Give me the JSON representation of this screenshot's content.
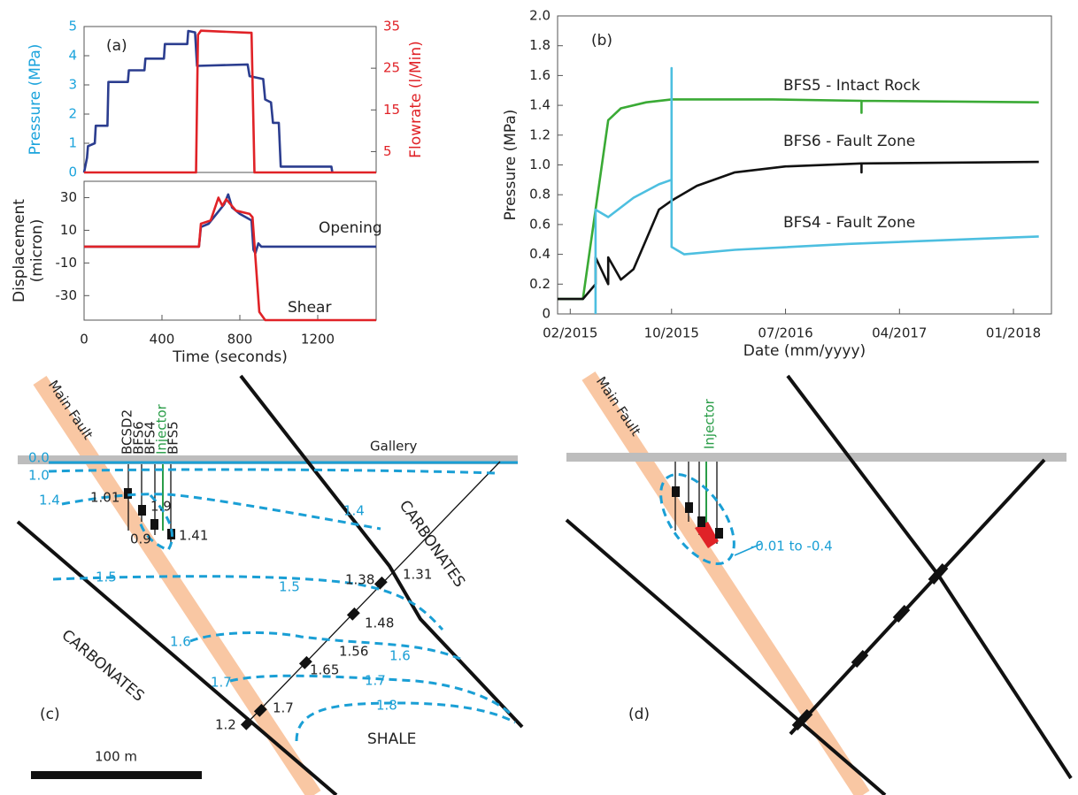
{
  "chart_data": [
    {
      "type": "line",
      "panel_label": "(a)",
      "ylabel": "Pressure (MPa)",
      "y2label": "Flowrate (l/Min)",
      "xlim": [
        0,
        1500
      ],
      "ylim": [
        0,
        5
      ],
      "yticks": [
        0,
        1,
        2,
        3,
        4,
        5
      ],
      "y2lim": [
        0,
        35
      ],
      "y2ticks": [
        5,
        15,
        25,
        35
      ],
      "series": [
        {
          "color": "#2b3d8f",
          "x": [
            0,
            15,
            20,
            55,
            60,
            120,
            125,
            225,
            230,
            310,
            315,
            410,
            415,
            530,
            535,
            570,
            580,
            840,
            850,
            920,
            930,
            960,
            970,
            1000,
            1010,
            1270,
            1275
          ],
          "values": [
            0,
            0.5,
            0.9,
            1.0,
            1.6,
            1.6,
            3.1,
            3.1,
            3.5,
            3.5,
            3.9,
            3.9,
            4.4,
            4.4,
            4.85,
            4.8,
            3.65,
            3.7,
            3.3,
            3.2,
            2.5,
            2.4,
            1.7,
            1.7,
            0.2,
            0.2,
            0
          ]
        },
        {
          "color": "#e02227",
          "axis": "y2",
          "x": [
            0,
            575,
            585,
            600,
            850,
            860,
            875,
            1500
          ],
          "values": [
            0,
            0,
            33,
            34,
            33.5,
            33.5,
            0,
            0
          ]
        }
      ]
    },
    {
      "type": "line",
      "ylabel": [
        "Displacement",
        "(micron)"
      ],
      "xlabel": "Time (seconds)",
      "xlim": [
        0,
        1500
      ],
      "xticks": [
        0,
        400,
        800,
        1200
      ],
      "ylim": [
        -45,
        40
      ],
      "yticks": [
        -30,
        -10,
        10,
        30
      ],
      "series": [
        {
          "name": "Opening",
          "color": "#2b3d8f",
          "x": [
            0,
            590,
            600,
            640,
            680,
            720,
            740,
            760,
            800,
            860,
            870,
            880,
            895,
            910,
            1500
          ],
          "values": [
            0,
            0,
            12,
            14,
            20,
            26,
            32,
            24,
            20,
            16,
            -2,
            -4,
            2,
            0,
            0
          ]
        },
        {
          "name": "Shear",
          "color": "#e02227",
          "x": [
            0,
            590,
            600,
            650,
            690,
            710,
            730,
            780,
            850,
            865,
            900,
            930,
            1500
          ],
          "values": [
            0,
            0,
            14,
            16,
            30,
            25,
            29,
            22,
            20,
            18,
            -40,
            -45,
            -45
          ]
        }
      ]
    },
    {
      "type": "line",
      "panel_label": "(b)",
      "ylabel": "Pressure (MPa)",
      "xlabel": "Date (mm/yyyy)",
      "xlim": [
        "2015-01",
        "2018-04"
      ],
      "xticks": [
        {
          "value": "2015-02",
          "label": "02/2015"
        },
        {
          "value": "2015-10",
          "label": "10/2015"
        },
        {
          "value": "2016-07",
          "label": "07/2016"
        },
        {
          "value": "2017-04",
          "label": "04/2017"
        },
        {
          "value": "2018-01",
          "label": "01/2018"
        }
      ],
      "ylim": [
        0,
        2
      ],
      "yticks": [
        0,
        0.2,
        0.4,
        0.6,
        0.8,
        {
          "value": 1,
          "label": "1.0"
        },
        1.2,
        1.4,
        1.6,
        1.8,
        {
          "value": 2,
          "label": "2.0"
        }
      ],
      "series": [
        {
          "name": "BFS5 - Intact Rock",
          "color": "#3aaa35",
          "x": [
            "2015-01",
            "2015-03",
            "2015-04",
            "2015-05",
            "2015-06",
            "2015-08",
            "2015-10",
            "2016-06",
            "2017-01",
            "2017-01",
            "2017-01",
            "2018-03"
          ],
          "values": [
            0.1,
            0.1,
            0.7,
            1.3,
            1.38,
            1.42,
            1.44,
            1.44,
            1.43,
            1.35,
            1.43,
            1.42
          ]
        },
        {
          "name": "BFS6 - Fault Zone",
          "color": "#111111",
          "x": [
            "2015-01",
            "2015-03",
            "2015-04",
            "2015-04",
            "2015-05",
            "2015-05",
            "2015-06",
            "2015-07",
            "2015-08",
            "2015-09",
            "2015-10",
            "2015-12",
            "2016-03",
            "2016-07",
            "2017-01",
            "2017-01",
            "2017-01",
            "2018-03"
          ],
          "values": [
            0.1,
            0.1,
            0.2,
            0.38,
            0.2,
            0.38,
            0.23,
            0.3,
            0.5,
            0.7,
            0.76,
            0.86,
            0.95,
            0.99,
            1.01,
            0.95,
            1.01,
            1.02
          ]
        },
        {
          "name": "BFS4 - Fault Zone",
          "color": "#4dbfe0",
          "x": [
            "2015-04",
            "2015-04",
            "2015-05",
            "2015-07",
            "2015-09",
            "2015-10",
            "2015-10",
            "2015-10",
            "2015-11",
            "2016-03",
            "2016-12",
            "2018-03"
          ],
          "values": [
            0,
            0.7,
            0.65,
            0.78,
            0.87,
            0.9,
            1.65,
            0.45,
            0.4,
            0.43,
            0.47,
            0.52
          ]
        }
      ]
    }
  ],
  "panel_c": {
    "label": "(c)",
    "fault": "Main Fault",
    "gallery": "Gallery",
    "boreholes": [
      "BCSD2",
      "BFS6",
      "BFS4",
      "Injector",
      "BFS5"
    ],
    "contours": [
      "0.0",
      "1.0",
      "1.4",
      "1.4",
      "1.5",
      "1.5",
      "1.6",
      "1.6",
      "1.7",
      "1.7",
      "1.8"
    ],
    "pressures": [
      "1.01",
      "1.9",
      "0.9",
      "1.41",
      "1.38",
      "1.31",
      "1.48",
      "1.56",
      "1.65",
      "1.7",
      "1.2"
    ],
    "units": [
      "CARBONATES",
      "CARBONATES",
      "SHALE"
    ],
    "scale": "100 m"
  },
  "panel_d": {
    "label": "(d)",
    "fault": "Main Fault",
    "injector": "Injector",
    "range": "-0.01 to -0.4"
  }
}
